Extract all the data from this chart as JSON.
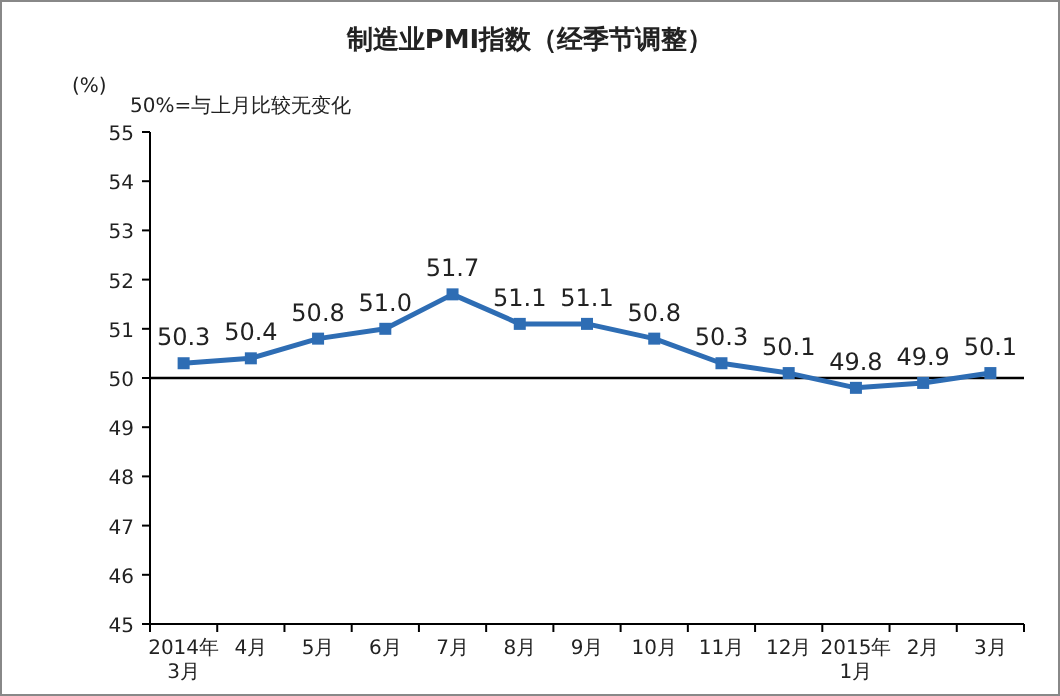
{
  "chart_data": {
    "type": "line",
    "title": "制造业PMI指数（经季节调整）",
    "ylabel": "(%)",
    "annotations": [
      "50%=与上月比较无变化"
    ],
    "categories": [
      "2014年\n3月",
      "4月",
      "5月",
      "6月",
      "7月",
      "8月",
      "9月",
      "10月",
      "11月",
      "12月",
      "2015年\n1月",
      "2月",
      "3月"
    ],
    "series": [
      {
        "color": "#2e6db4",
        "values": [
          50.3,
          50.4,
          50.8,
          51.0,
          51.7,
          51.1,
          51.1,
          50.8,
          50.3,
          50.1,
          49.8,
          49.9,
          50.1
        ],
        "value_labels": [
          "50.3",
          "50.4",
          "50.8",
          "51.0",
          "51.7",
          "51.1",
          "51.1",
          "50.8",
          "50.3",
          "50.1",
          "49.8",
          "49.9",
          "50.1"
        ]
      }
    ],
    "ylim": [
      45,
      55
    ],
    "yticks": [
      45,
      46,
      47,
      48,
      49,
      50,
      51,
      52,
      53,
      54,
      55
    ],
    "ref_lines": [
      {
        "axis": "y",
        "value": 50,
        "color": "#000000"
      }
    ],
    "marker": "square",
    "line_style": "solid"
  }
}
